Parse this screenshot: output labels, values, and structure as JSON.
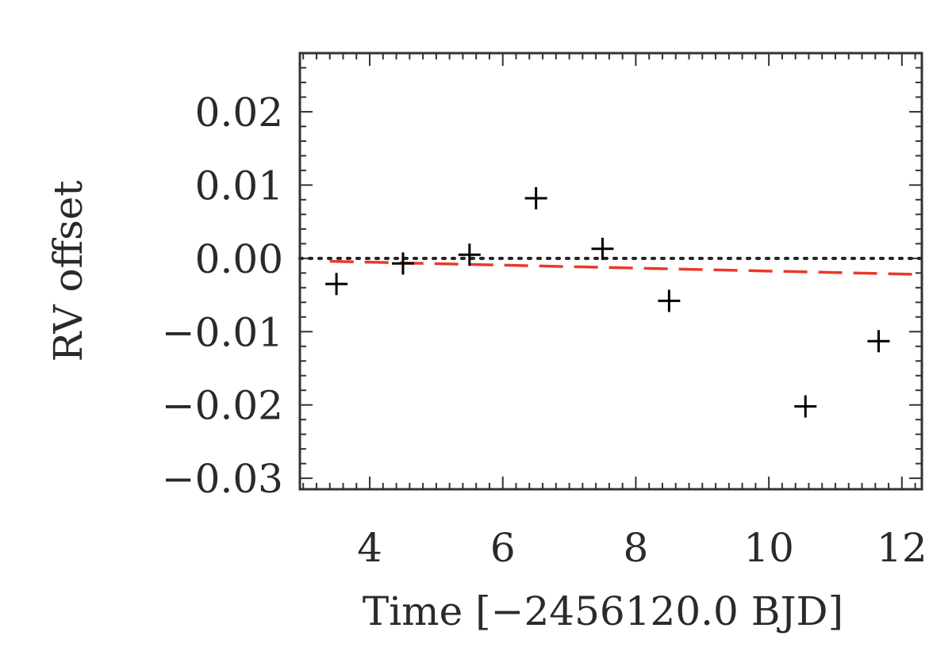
{
  "chart_data": {
    "type": "scatter",
    "title": "",
    "xlabel": "Time [−2456120.0 BJD]",
    "ylabel": "RV offset",
    "xlim": [
      2.95,
      12.3
    ],
    "ylim": [
      -0.0315,
      0.028
    ],
    "xticks": [
      4,
      6,
      8,
      10,
      12
    ],
    "xtick_labels": [
      "4",
      "6",
      "8",
      "10",
      "12"
    ],
    "yticks": [
      0.02,
      0.01,
      0.0,
      -0.01,
      -0.02,
      -0.03
    ],
    "ytick_labels": [
      "0.02",
      "0.01",
      "0.00",
      "−0.01",
      "−0.02",
      "−0.03"
    ],
    "grid": false,
    "series": [
      {
        "type": "scatter",
        "marker": "plus",
        "color": "#000000",
        "x": [
          3.5,
          4.5,
          5.5,
          6.5,
          7.5,
          8.5,
          10.55,
          11.65
        ],
        "y": [
          -0.0035,
          -0.0007,
          0.0005,
          0.0082,
          0.0013,
          -0.0058,
          -0.0202,
          -0.0113
        ]
      },
      {
        "type": "line",
        "style": "dashed",
        "color": "#e8392a",
        "x": [
          3.4,
          12.3
        ],
        "y": [
          -0.0004,
          -0.0022
        ]
      },
      {
        "type": "line",
        "style": "dotted",
        "color": "#222222",
        "x": [
          2.95,
          12.3
        ],
        "y": [
          0.0,
          0.0
        ]
      }
    ]
  }
}
